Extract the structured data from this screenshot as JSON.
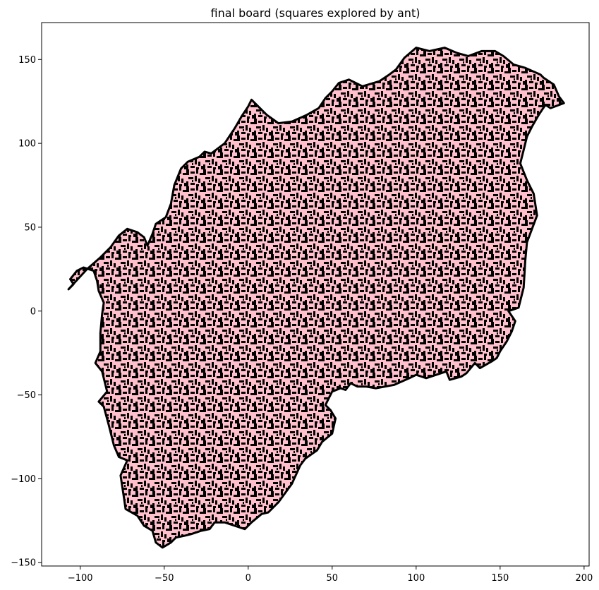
{
  "chart_data": {
    "type": "scatter",
    "title": "final board (squares explored by ant)",
    "xlabel": "",
    "ylabel": "",
    "xlim": [
      -123,
      203
    ],
    "ylim": [
      -152,
      172
    ],
    "grid": false,
    "x_ticks": [
      -100,
      -50,
      0,
      50,
      100,
      150,
      200
    ],
    "y_ticks": [
      -150,
      -100,
      -50,
      0,
      50,
      100,
      150
    ],
    "x_tick_labels": [
      "−100",
      "−50",
      "0",
      "50",
      "100",
      "150",
      "200"
    ],
    "y_tick_labels": [
      "−150",
      "−100",
      "−50",
      "0",
      "50",
      "100",
      "150"
    ],
    "cell_colors": {
      "explored_light": "#ffc0cb",
      "explored_dark": "#000000"
    },
    "region_outline": {
      "description_units": "data",
      "x": [
        -107,
        -96,
        -88,
        -82,
        -77,
        -72,
        -66,
        -62,
        -60,
        -57,
        -55,
        -49,
        -46,
        -44,
        -40,
        -36,
        -29,
        -26,
        -22,
        -14,
        -8,
        -4,
        0,
        2,
        8,
        11,
        18,
        26,
        35,
        42,
        46,
        50,
        54,
        60,
        68,
        78,
        84,
        88,
        93,
        100,
        108,
        117,
        124,
        131,
        139,
        147,
        152,
        158,
        165,
        174,
        176,
        182,
        185,
        188,
        180,
        177,
        173,
        169,
        166,
        164,
        162,
        166,
        170,
        172,
        166,
        165,
        164,
        161,
        155,
        159,
        157,
        154,
        152,
        150,
        148,
        145,
        138,
        135,
        130,
        127,
        120,
        118,
        115,
        106,
        100,
        96,
        87,
        76,
        70,
        65,
        61,
        58,
        55,
        50,
        48,
        46,
        49,
        52,
        50,
        44,
        41,
        34,
        31,
        26,
        18,
        12,
        8,
        2,
        -2,
        -8,
        -14,
        -20,
        -23,
        -28,
        -34,
        -38,
        -43,
        -46,
        -51,
        -55,
        -57,
        -62,
        -66,
        -73,
        -74,
        -76,
        -72,
        -77,
        -80,
        -83,
        -86,
        -89,
        -84,
        -87,
        -91,
        -88,
        -88,
        -87,
        -86,
        -89,
        -90,
        -92,
        -98,
        -102,
        -106,
        -104
      ],
      "y": [
        13,
        25,
        32,
        38,
        45,
        49,
        47,
        44,
        39,
        46,
        52,
        56,
        64,
        75,
        85,
        89,
        92,
        95,
        94,
        100,
        109,
        116,
        122,
        126,
        120,
        117,
        112,
        113,
        117,
        121,
        127,
        131,
        136,
        138,
        134,
        137,
        141,
        144,
        151,
        157,
        155,
        157,
        154,
        152,
        155,
        155,
        152,
        147,
        145,
        141,
        139,
        135,
        128,
        124,
        121,
        123,
        117,
        110,
        104,
        96,
        88,
        78,
        70,
        57,
        41,
        30,
        14,
        2,
        0,
        -6,
        -12,
        -18,
        -21,
        -24,
        -28,
        -30,
        -34,
        -31,
        -37,
        -39,
        -41,
        -36,
        -37,
        -40,
        -38,
        -40,
        -44,
        -46,
        -45,
        -45,
        -43,
        -47,
        -46,
        -48,
        -52,
        -56,
        -59,
        -64,
        -73,
        -78,
        -83,
        -88,
        -92,
        -103,
        -114,
        -120,
        -121,
        -126,
        -130,
        -128,
        -126,
        -126,
        -130,
        -131,
        -133,
        -134,
        -135,
        -138,
        -141,
        -138,
        -131,
        -128,
        -122,
        -118,
        -111,
        -98,
        -89,
        -87,
        -80,
        -68,
        -57,
        -54,
        -48,
        -36,
        -31,
        -24,
        -13,
        -2,
        5,
        12,
        18,
        24,
        26,
        24,
        19,
        16
      ]
    }
  }
}
